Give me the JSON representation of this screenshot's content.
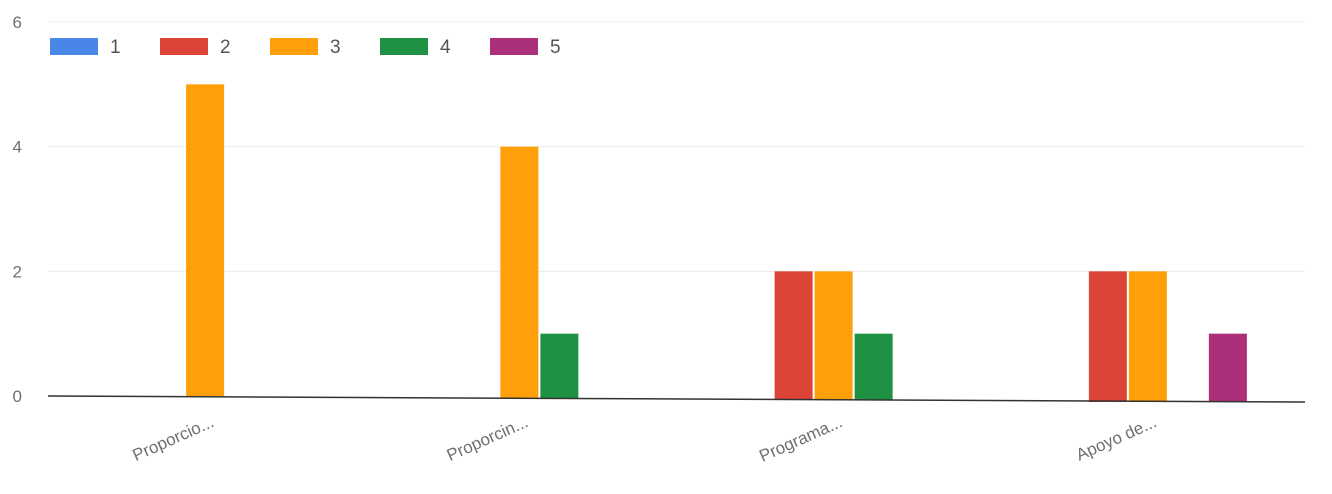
{
  "chart_data": {
    "type": "bar",
    "categories": [
      "Proporcio...",
      "Proporcin...",
      "Programa...",
      "Apoyo de..."
    ],
    "series": [
      {
        "name": "1",
        "color": "#4a86e8",
        "values": [
          0,
          0,
          0,
          0
        ]
      },
      {
        "name": "2",
        "color": "#db4437",
        "values": [
          0,
          0,
          2,
          2
        ]
      },
      {
        "name": "3",
        "color": "#ff9f0a",
        "values": [
          5,
          4,
          2,
          2
        ]
      },
      {
        "name": "4",
        "color": "#1f9142",
        "values": [
          0,
          1,
          1,
          0
        ]
      },
      {
        "name": "5",
        "color": "#ab2f79",
        "values": [
          0,
          0,
          0,
          1
        ]
      }
    ],
    "ylim": [
      0,
      6
    ],
    "yticks": [
      "0",
      "2",
      "4",
      "6"
    ],
    "grid": true,
    "legend_position": "top-left"
  }
}
